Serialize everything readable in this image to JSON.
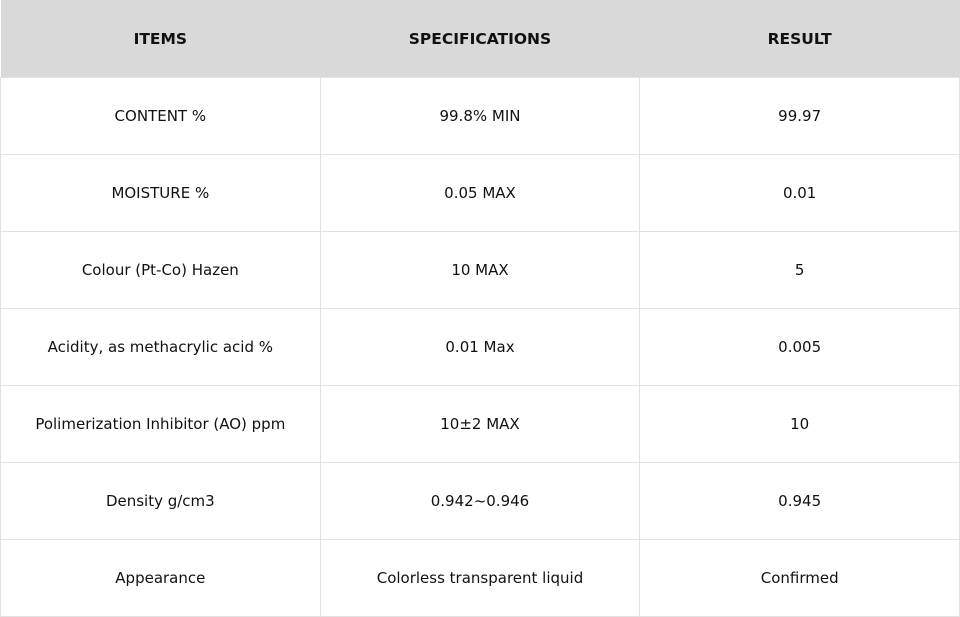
{
  "table": {
    "columns": [
      "ITEMS",
      "SPECIFICATIONS",
      "RESULT"
    ],
    "rows": [
      [
        "CONTENT %",
        "99.8% MIN",
        "99.97"
      ],
      [
        "MOISTURE %",
        "0.05 MAX",
        "0.01"
      ],
      [
        "Colour (Pt-Co) Hazen",
        "10 MAX",
        "5"
      ],
      [
        "Acidity, as methacrylic acid %",
        "0.01 Max",
        "0.005"
      ],
      [
        "Polimerization Inhibitor (AO) ppm",
        "10±2 MAX",
        "10"
      ],
      [
        "Density g/cm3",
        "0.942~0.946",
        "0.945"
      ],
      [
        "Appearance",
        "Colorless transparent liquid",
        "Confirmed"
      ]
    ]
  }
}
